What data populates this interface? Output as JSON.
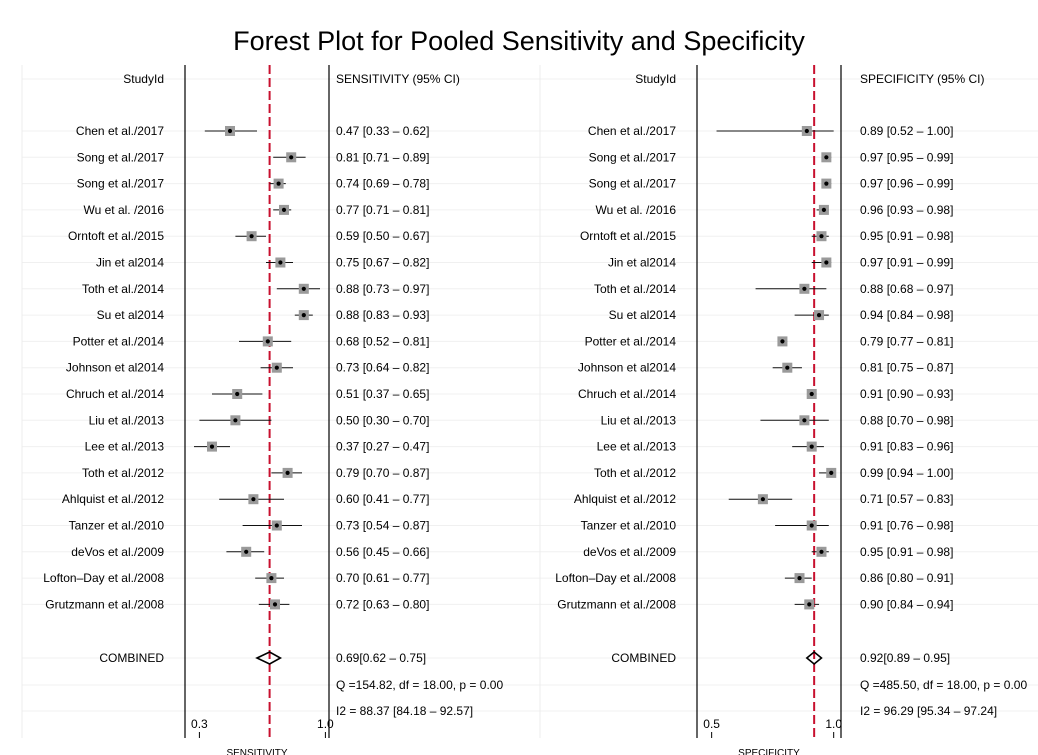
{
  "title": "Forest Plot for Pooled Sensitivity and Specificity",
  "study_header": "StudyId",
  "combined_label": "COMBINED",
  "chart_data": [
    {
      "type": "forest",
      "name": "sensitivity",
      "ci_header": "SENSITIVITY (95% CI)",
      "xlabel": "SENSITIVITY",
      "xlim": [
        0.22,
        1.02
      ],
      "xticks": [
        {
          "v": 0.3,
          "label": "0.3"
        },
        {
          "v": 1.0,
          "label": "1.0"
        }
      ],
      "pooled_line": 0.69,
      "line_color": "#c8102e",
      "studies": [
        {
          "id": "Chen et al./2017",
          "est": 0.47,
          "lo": 0.33,
          "hi": 0.62,
          "ci": "0.47 [0.33 – 0.62]"
        },
        {
          "id": "Song et al./2017",
          "est": 0.81,
          "lo": 0.71,
          "hi": 0.89,
          "ci": "0.81 [0.71 – 0.89]"
        },
        {
          "id": "Song et al./2017",
          "est": 0.74,
          "lo": 0.69,
          "hi": 0.78,
          "ci": "0.74 [0.69 – 0.78]"
        },
        {
          "id": "Wu et al. /2016",
          "est": 0.77,
          "lo": 0.71,
          "hi": 0.81,
          "ci": "0.77 [0.71 – 0.81]"
        },
        {
          "id": "Orntoft et al./2015",
          "est": 0.59,
          "lo": 0.5,
          "hi": 0.67,
          "ci": "0.59 [0.50 – 0.67]"
        },
        {
          "id": "Jin et al2014",
          "est": 0.75,
          "lo": 0.67,
          "hi": 0.82,
          "ci": "0.75 [0.67 – 0.82]"
        },
        {
          "id": "Toth et al./2014",
          "est": 0.88,
          "lo": 0.73,
          "hi": 0.97,
          "ci": "0.88 [0.73 – 0.97]"
        },
        {
          "id": "Su et al2014",
          "est": 0.88,
          "lo": 0.83,
          "hi": 0.93,
          "ci": "0.88 [0.83 – 0.93]"
        },
        {
          "id": "Potter et al./2014",
          "est": 0.68,
          "lo": 0.52,
          "hi": 0.81,
          "ci": "0.68 [0.52 – 0.81]"
        },
        {
          "id": "Johnson et al2014",
          "est": 0.73,
          "lo": 0.64,
          "hi": 0.82,
          "ci": "0.73 [0.64 – 0.82]"
        },
        {
          "id": "Chruch et al./2014",
          "est": 0.51,
          "lo": 0.37,
          "hi": 0.65,
          "ci": "0.51 [0.37 – 0.65]"
        },
        {
          "id": "Liu et al./2013",
          "est": 0.5,
          "lo": 0.3,
          "hi": 0.7,
          "ci": "0.50 [0.30 – 0.70]"
        },
        {
          "id": "Lee et al./2013",
          "est": 0.37,
          "lo": 0.27,
          "hi": 0.47,
          "ci": "0.37 [0.27 – 0.47]"
        },
        {
          "id": "Toth et al./2012",
          "est": 0.79,
          "lo": 0.7,
          "hi": 0.87,
          "ci": "0.79 [0.70 – 0.87]"
        },
        {
          "id": "Ahlquist et al./2012",
          "est": 0.6,
          "lo": 0.41,
          "hi": 0.77,
          "ci": "0.60 [0.41 – 0.77]"
        },
        {
          "id": "Tanzer et al./2010",
          "est": 0.73,
          "lo": 0.54,
          "hi": 0.87,
          "ci": "0.73 [0.54 – 0.87]"
        },
        {
          "id": "deVos et al./2009",
          "est": 0.56,
          "lo": 0.45,
          "hi": 0.66,
          "ci": "0.56 [0.45 – 0.66]"
        },
        {
          "id": "Lofton–Day et al./2008",
          "est": 0.7,
          "lo": 0.61,
          "hi": 0.77,
          "ci": "0.70 [0.61 – 0.77]"
        },
        {
          "id": "Grutzmann et al./2008",
          "est": 0.72,
          "lo": 0.63,
          "hi": 0.8,
          "ci": "0.72 [0.63 – 0.80]"
        }
      ],
      "combined": {
        "est": 0.69,
        "lo": 0.62,
        "hi": 0.75,
        "ci": "0.69[0.62 – 0.75]"
      },
      "q_stat": "Q =154.82, df = 18.00, p =  0.00",
      "i2_stat": "I2 = 88.37 [84.18 – 92.57]"
    },
    {
      "type": "forest",
      "name": "specificity",
      "ci_header": "SPECIFICITY (95% CI)",
      "xlabel": "SPECIFICITY",
      "xlim": [
        0.44,
        1.03
      ],
      "xticks": [
        {
          "v": 0.5,
          "label": "0.5"
        },
        {
          "v": 1.0,
          "label": "1.0"
        }
      ],
      "pooled_line": 0.92,
      "line_color": "#c8102e",
      "studies": [
        {
          "id": "Chen et al./2017",
          "est": 0.89,
          "lo": 0.52,
          "hi": 1.0,
          "ci": "0.89 [0.52 – 1.00]"
        },
        {
          "id": "Song et al./2017",
          "est": 0.97,
          "lo": 0.95,
          "hi": 0.99,
          "ci": "0.97 [0.95 – 0.99]"
        },
        {
          "id": "Song et al./2017",
          "est": 0.97,
          "lo": 0.96,
          "hi": 0.99,
          "ci": "0.97 [0.96 – 0.99]"
        },
        {
          "id": "Wu et al. /2016",
          "est": 0.96,
          "lo": 0.93,
          "hi": 0.98,
          "ci": "0.96 [0.93 – 0.98]"
        },
        {
          "id": "Orntoft et al./2015",
          "est": 0.95,
          "lo": 0.91,
          "hi": 0.98,
          "ci": "0.95 [0.91 – 0.98]"
        },
        {
          "id": "Jin et al2014",
          "est": 0.97,
          "lo": 0.91,
          "hi": 0.99,
          "ci": "0.97 [0.91 – 0.99]"
        },
        {
          "id": "Toth et al./2014",
          "est": 0.88,
          "lo": 0.68,
          "hi": 0.97,
          "ci": "0.88 [0.68 – 0.97]"
        },
        {
          "id": "Su et al2014",
          "est": 0.94,
          "lo": 0.84,
          "hi": 0.98,
          "ci": "0.94 [0.84 – 0.98]"
        },
        {
          "id": "Potter et al./2014",
          "est": 0.79,
          "lo": 0.77,
          "hi": 0.81,
          "ci": "0.79 [0.77 – 0.81]"
        },
        {
          "id": "Johnson et al2014",
          "est": 0.81,
          "lo": 0.75,
          "hi": 0.87,
          "ci": "0.81 [0.75 – 0.87]"
        },
        {
          "id": "Chruch et al./2014",
          "est": 0.91,
          "lo": 0.9,
          "hi": 0.93,
          "ci": "0.91 [0.90 – 0.93]"
        },
        {
          "id": "Liu et al./2013",
          "est": 0.88,
          "lo": 0.7,
          "hi": 0.98,
          "ci": "0.88 [0.70 – 0.98]"
        },
        {
          "id": "Lee et al./2013",
          "est": 0.91,
          "lo": 0.83,
          "hi": 0.96,
          "ci": "0.91 [0.83 – 0.96]"
        },
        {
          "id": "Toth et al./2012",
          "est": 0.99,
          "lo": 0.94,
          "hi": 1.0,
          "ci": "0.99 [0.94 – 1.00]"
        },
        {
          "id": "Ahlquist et al./2012",
          "est": 0.71,
          "lo": 0.57,
          "hi": 0.83,
          "ci": "0.71 [0.57 – 0.83]"
        },
        {
          "id": "Tanzer et al./2010",
          "est": 0.91,
          "lo": 0.76,
          "hi": 0.98,
          "ci": "0.91 [0.76 – 0.98]"
        },
        {
          "id": "deVos et al./2009",
          "est": 0.95,
          "lo": 0.91,
          "hi": 0.98,
          "ci": "0.95 [0.91 – 0.98]"
        },
        {
          "id": "Lofton–Day et al./2008",
          "est": 0.86,
          "lo": 0.8,
          "hi": 0.91,
          "ci": "0.86 [0.80 – 0.91]"
        },
        {
          "id": "Grutzmann et al./2008",
          "est": 0.9,
          "lo": 0.84,
          "hi": 0.94,
          "ci": "0.90 [0.84 – 0.94]"
        }
      ],
      "combined": {
        "est": 0.92,
        "lo": 0.89,
        "hi": 0.95,
        "ci": "0.92[0.89 – 0.95]"
      },
      "q_stat": "Q =485.50, df = 18.00, p =  0.00",
      "i2_stat": "I2 = 96.29 [95.34 – 97.24]"
    }
  ]
}
